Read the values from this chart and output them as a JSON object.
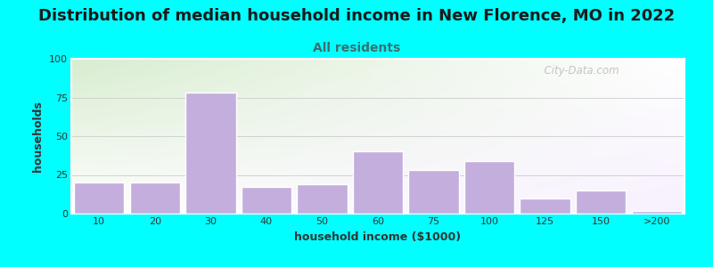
{
  "title": "Distribution of median household income in New Florence, MO in 2022",
  "subtitle": "All residents",
  "xlabel": "household income ($1000)",
  "ylabel": "households",
  "background_color": "#00FFFF",
  "bar_color": "#C4AEDD",
  "bar_edge_color": "#FFFFFF",
  "categories": [
    "10",
    "20",
    "30",
    "40",
    "50",
    "60",
    "75",
    "100",
    "125",
    "150",
    ">200"
  ],
  "values": [
    20,
    20,
    78,
    17,
    19,
    40,
    28,
    34,
    10,
    15,
    2
  ],
  "ylim": [
    0,
    100
  ],
  "yticks": [
    0,
    25,
    50,
    75,
    100
  ],
  "title_fontsize": 13,
  "subtitle_fontsize": 10,
  "axis_label_fontsize": 9,
  "tick_fontsize": 8,
  "watermark": "  City-Data.com",
  "title_color": "#1A1A1A",
  "subtitle_color": "#3A7070",
  "axes_label_color": "#333333",
  "tick_color": "#333333",
  "grid_color": "#CCCCCC",
  "frame_color": "#FFFFFF",
  "watermark_color": "#BBBBBB",
  "bg_gradient_left": "#D8EDD0",
  "bg_gradient_right": "#F8F0FF"
}
